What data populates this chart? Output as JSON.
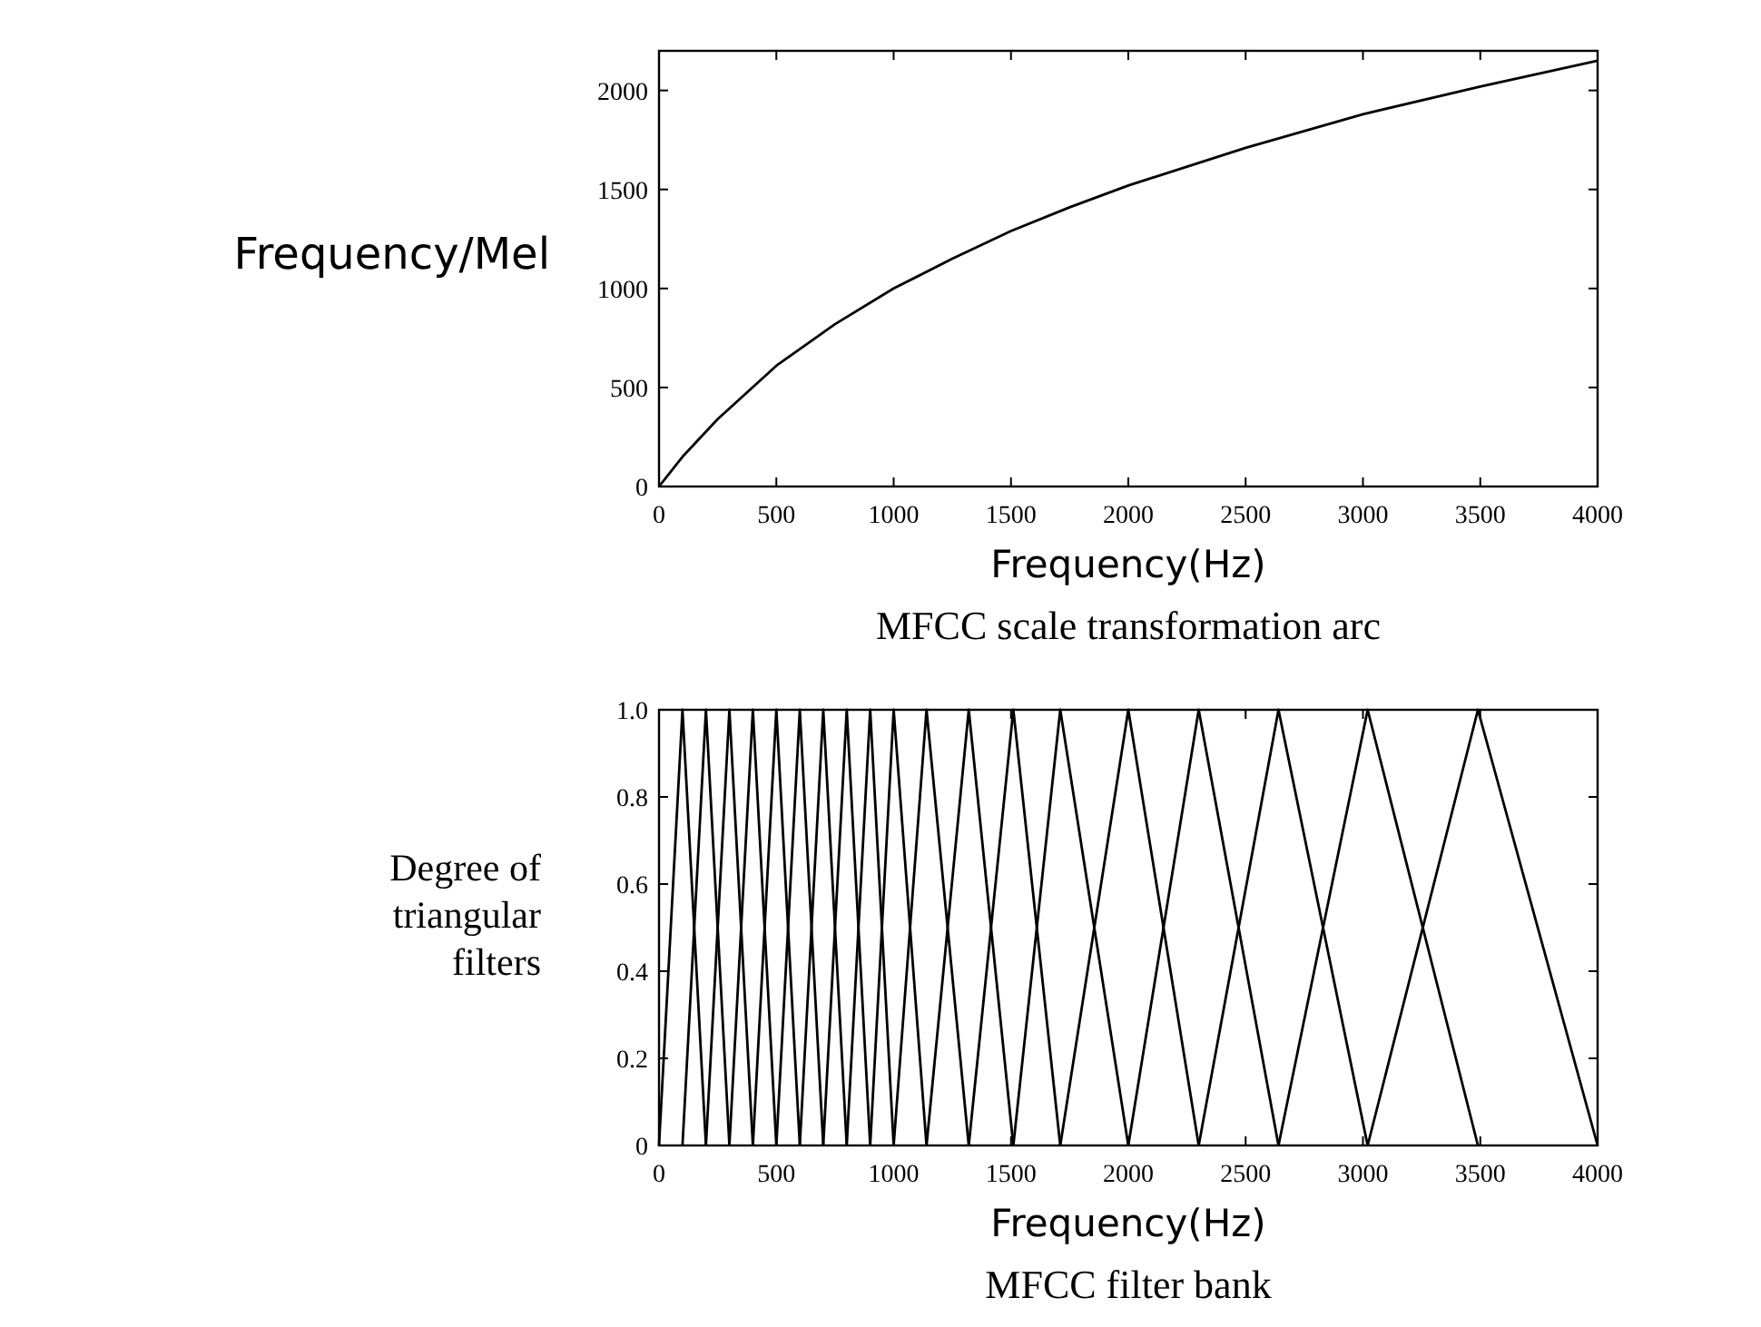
{
  "chart_data": [
    {
      "type": "line",
      "title": "MFCC scale transformation arc",
      "xlabel": "Frequency(Hz)",
      "ylabel": "Frequency/Mel",
      "xlim": [
        0,
        4000
      ],
      "ylim": [
        0,
        2200
      ],
      "xticks": [
        0,
        500,
        1000,
        1500,
        2000,
        2500,
        3000,
        3500,
        4000
      ],
      "yticks": [
        0,
        500,
        1000,
        1500,
        2000
      ],
      "series": [
        {
          "color": "#000000",
          "x": [
            0,
            100,
            250,
            500,
            750,
            1000,
            1250,
            1500,
            1750,
            2000,
            2500,
            3000,
            3500,
            4000
          ],
          "values": [
            0,
            150,
            340,
            610,
            820,
            1000,
            1150,
            1290,
            1410,
            1520,
            1710,
            1880,
            2020,
            2150
          ]
        }
      ]
    },
    {
      "type": "line",
      "title": "MFCC filter bank",
      "xlabel": "Frequency(Hz)",
      "ylabel": "Degree of triangular filters",
      "xlim": [
        0,
        4000
      ],
      "ylim": [
        0,
        1
      ],
      "xticks": [
        0,
        500,
        1000,
        1500,
        2000,
        2500,
        3000,
        3500,
        4000
      ],
      "yticks": [
        0,
        0.2,
        0.4,
        0.6,
        0.8,
        {
          "value": 1,
          "label": "1.0"
        }
      ],
      "series": [
        {
          "color": "#000000",
          "x": [
            0,
            100,
            200
          ],
          "values": [
            0,
            1,
            0
          ]
        },
        {
          "color": "#000000",
          "x": [
            100,
            200,
            300
          ],
          "values": [
            0,
            1,
            0
          ]
        },
        {
          "color": "#000000",
          "x": [
            200,
            300,
            400
          ],
          "values": [
            0,
            1,
            0
          ]
        },
        {
          "color": "#000000",
          "x": [
            300,
            400,
            500
          ],
          "values": [
            0,
            1,
            0
          ]
        },
        {
          "color": "#000000",
          "x": [
            400,
            500,
            600
          ],
          "values": [
            0,
            1,
            0
          ]
        },
        {
          "color": "#000000",
          "x": [
            500,
            600,
            700
          ],
          "values": [
            0,
            1,
            0
          ]
        },
        {
          "color": "#000000",
          "x": [
            600,
            700,
            800
          ],
          "values": [
            0,
            1,
            0
          ]
        },
        {
          "color": "#000000",
          "x": [
            700,
            800,
            900
          ],
          "values": [
            0,
            1,
            0
          ]
        },
        {
          "color": "#000000",
          "x": [
            800,
            900,
            1000
          ],
          "values": [
            0,
            1,
            0
          ]
        },
        {
          "color": "#000000",
          "x": [
            900,
            1000,
            1140
          ],
          "values": [
            0,
            1,
            0
          ]
        },
        {
          "color": "#000000",
          "x": [
            1000,
            1140,
            1320
          ],
          "values": [
            0,
            1,
            0
          ]
        },
        {
          "color": "#000000",
          "x": [
            1140,
            1320,
            1510
          ],
          "values": [
            0,
            1,
            0
          ]
        },
        {
          "color": "#000000",
          "x": [
            1320,
            1510,
            1710
          ],
          "values": [
            0,
            1,
            0
          ]
        },
        {
          "color": "#000000",
          "x": [
            1510,
            1710,
            2000
          ],
          "values": [
            0,
            1,
            0
          ]
        },
        {
          "color": "#000000",
          "x": [
            1710,
            2000,
            2300
          ],
          "values": [
            0,
            1,
            0
          ]
        },
        {
          "color": "#000000",
          "x": [
            2000,
            2300,
            2640
          ],
          "values": [
            0,
            1,
            0
          ]
        },
        {
          "color": "#000000",
          "x": [
            2300,
            2640,
            3020
          ],
          "values": [
            0,
            1,
            0
          ]
        },
        {
          "color": "#000000",
          "x": [
            2640,
            3020,
            3490
          ],
          "values": [
            0,
            1,
            0
          ]
        },
        {
          "color": "#000000",
          "x": [
            3020,
            3490,
            4000
          ],
          "values": [
            0,
            1,
            0
          ]
        }
      ]
    }
  ]
}
